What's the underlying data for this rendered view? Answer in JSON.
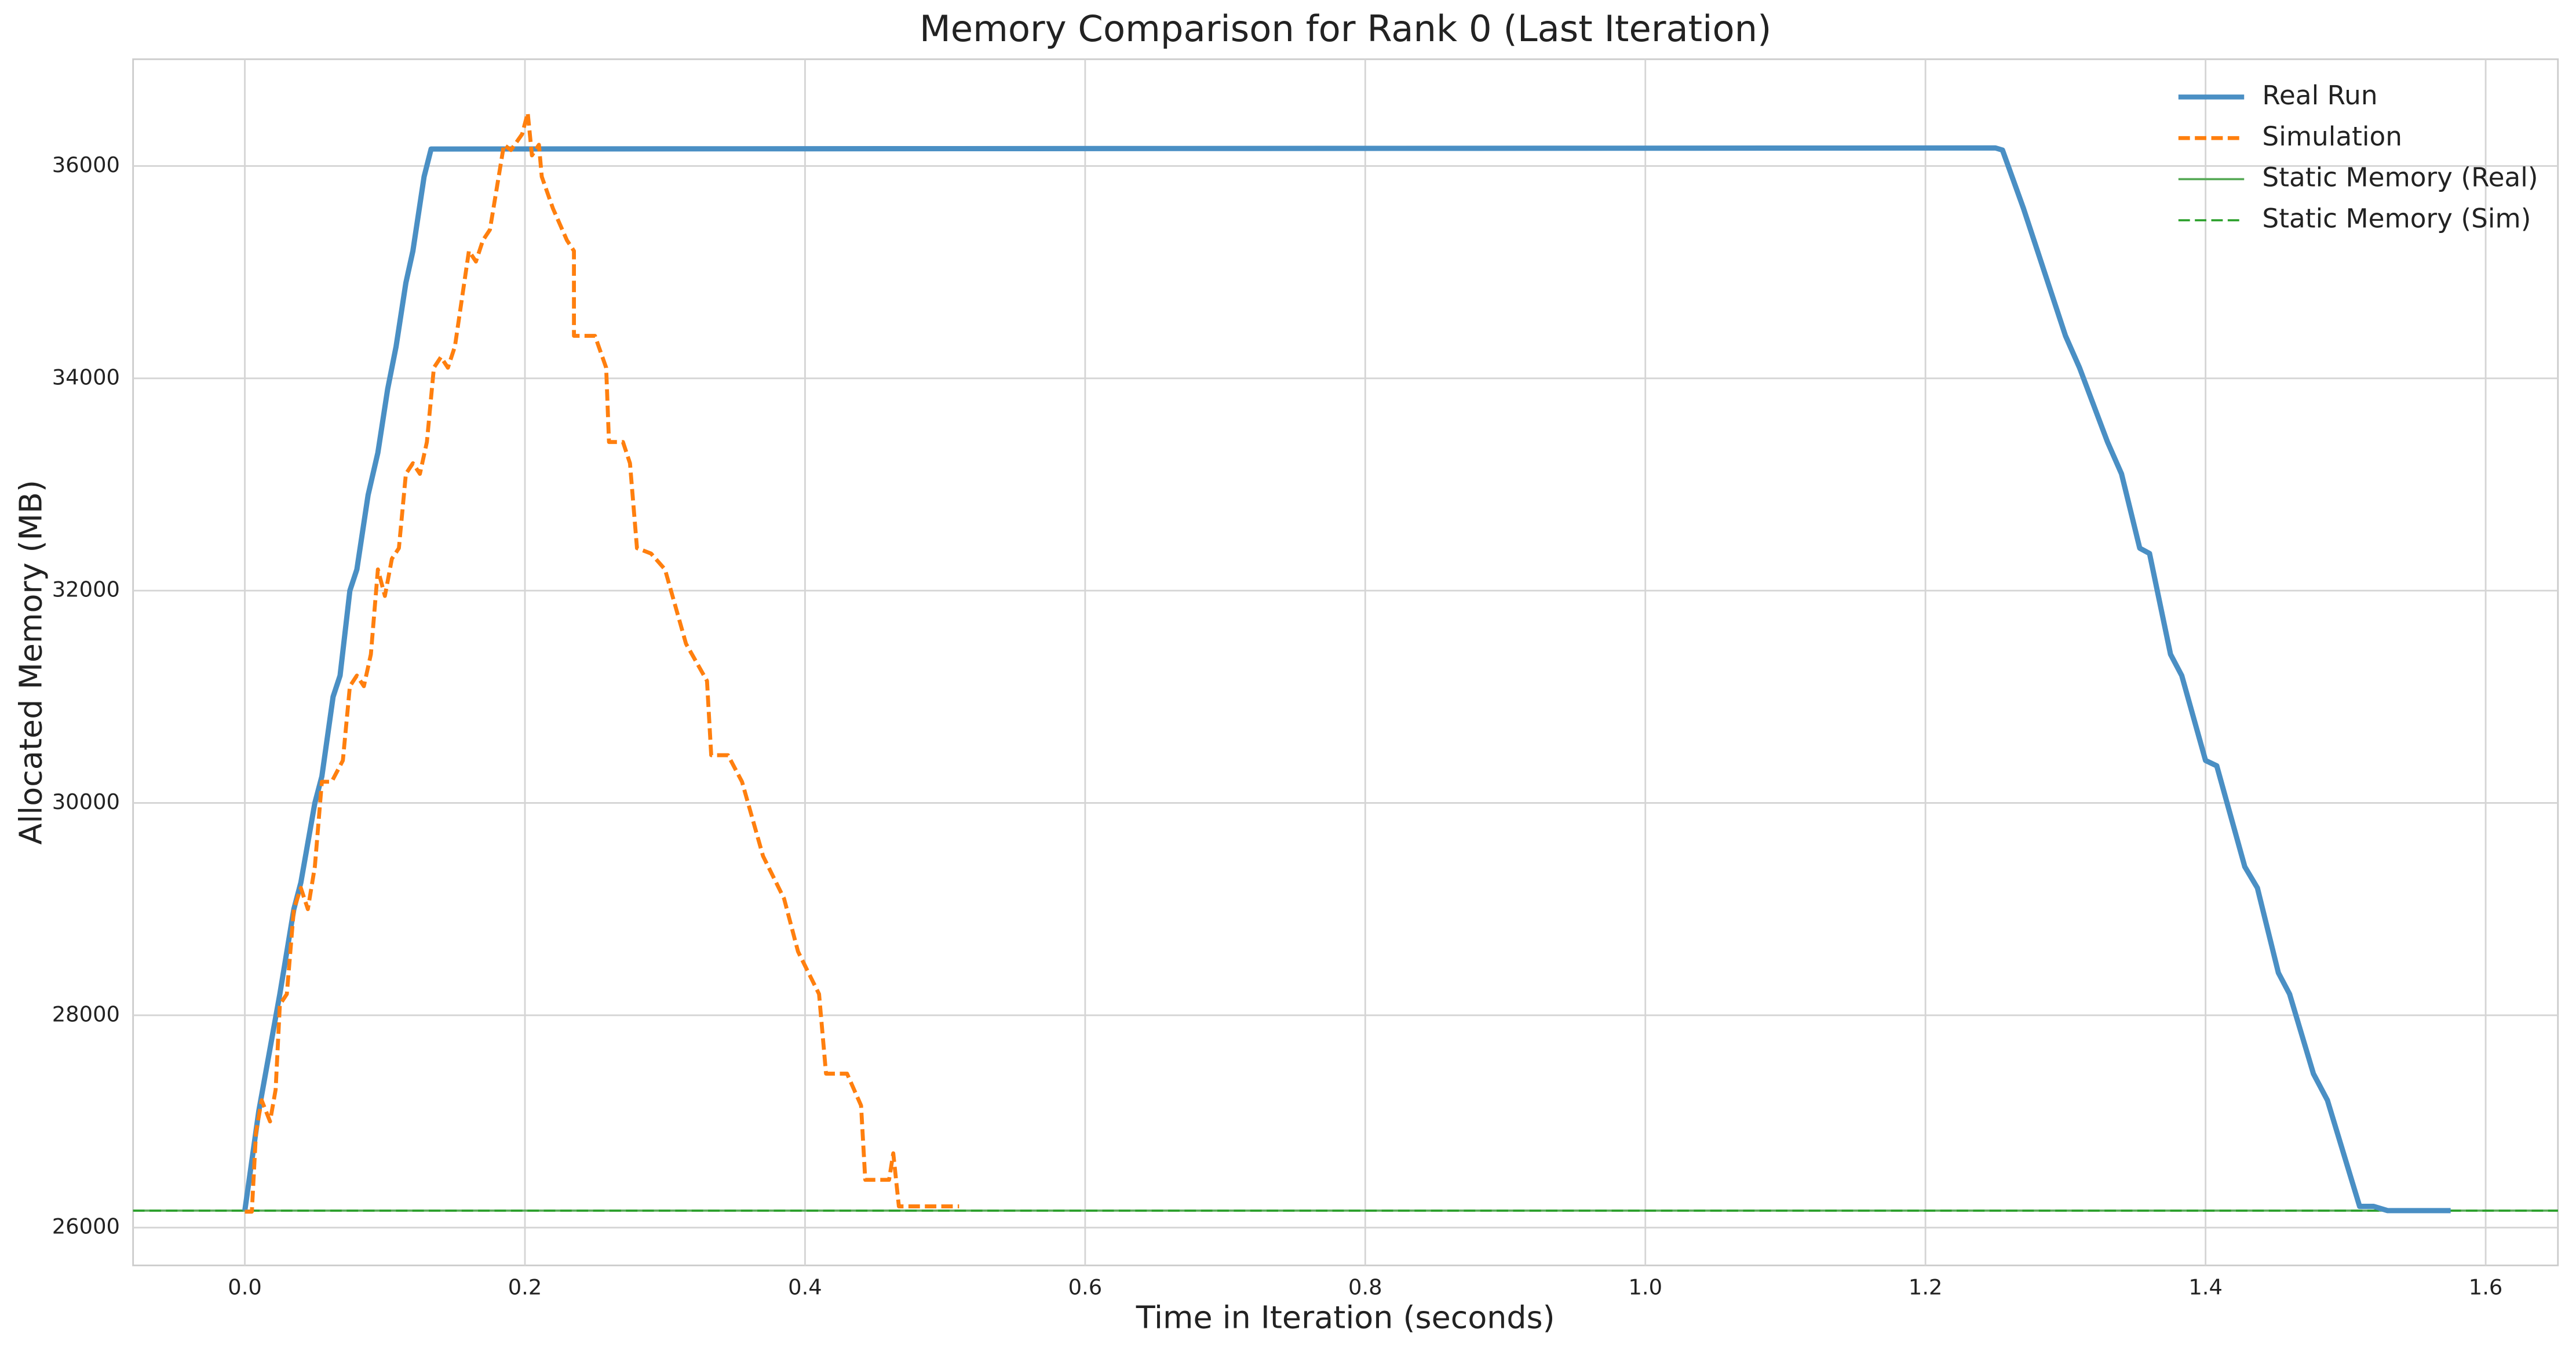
{
  "chart_data": {
    "type": "line",
    "title": "Memory Comparison for Rank 0 (Last Iteration)",
    "x_label": "Time in Iteration (seconds)",
    "y_label": "Allocated Memory (MB)",
    "xlim": [
      -0.0798,
      1.6516
    ],
    "ylim": [
      25644,
      37006
    ],
    "xticks": [
      {
        "value": 0,
        "label": "0.0"
      },
      0.2,
      0.4,
      0.6,
      0.8,
      {
        "value": 1,
        "label": "1.0"
      },
      1.2,
      1.4,
      1.6
    ],
    "yticks": [
      26000,
      28000,
      30000,
      32000,
      34000,
      36000
    ],
    "grid": true,
    "legend": "upper right",
    "series": [
      {
        "name": "Real Run",
        "color": "#4a8fc4",
        "style": "solid",
        "x": [
          0,
          0.01,
          0.025,
          0.035,
          0.04,
          0.05,
          0.055,
          0.063,
          0.068,
          0.075,
          0.08,
          0.088,
          0.095,
          0.102,
          0.108,
          0.115,
          0.12,
          0.128,
          0.133,
          1.25,
          1.255,
          1.27,
          1.28,
          1.3,
          1.31,
          1.33,
          1.34,
          1.353,
          1.36,
          1.375,
          1.383,
          1.4,
          1.408,
          1.428,
          1.437,
          1.452,
          1.46,
          1.477,
          1.487,
          1.51,
          1.52,
          1.53,
          1.575
        ],
        "values": [
          26160,
          27100,
          28200,
          29000,
          29250,
          30000,
          30250,
          31000,
          31200,
          32000,
          32200,
          32900,
          33300,
          33900,
          34300,
          34900,
          35200,
          35900,
          36160,
          36170,
          36150,
          35600,
          35200,
          34400,
          34100,
          33400,
          33100,
          32400,
          32350,
          31400,
          31200,
          30400,
          30350,
          29400,
          29200,
          28400,
          28200,
          27450,
          27200,
          26200,
          26200,
          26160,
          26160
        ]
      },
      {
        "name": "Simulation",
        "color": "#ff7f0e",
        "style": "dashed",
        "x": [
          0,
          0.005,
          0.008,
          0.012,
          0.018,
          0.022,
          0.025,
          0.03,
          0.035,
          0.04,
          0.045,
          0.05,
          0.055,
          0.062,
          0.07,
          0.075,
          0.08,
          0.085,
          0.09,
          0.095,
          0.1,
          0.105,
          0.11,
          0.115,
          0.12,
          0.125,
          0.13,
          0.135,
          0.14,
          0.145,
          0.15,
          0.16,
          0.165,
          0.17,
          0.175,
          0.185,
          0.19,
          0.198,
          0.202,
          0.205,
          0.21,
          0.212,
          0.22,
          0.23,
          0.235,
          0.235,
          0.25,
          0.258,
          0.26,
          0.27,
          0.275,
          0.28,
          0.29,
          0.3,
          0.315,
          0.33,
          0.333,
          0.345,
          0.355,
          0.37,
          0.385,
          0.395,
          0.41,
          0.415,
          0.43,
          0.44,
          0.443,
          0.46,
          0.463,
          0.467,
          0.51
        ],
        "values": [
          26150,
          26150,
          26900,
          27200,
          27000,
          27300,
          28100,
          28200,
          29000,
          29200,
          29000,
          29400,
          30200,
          30200,
          30400,
          31100,
          31200,
          31100,
          31400,
          32200,
          31950,
          32300,
          32400,
          33100,
          33200,
          33100,
          33400,
          34100,
          34200,
          34100,
          34300,
          35200,
          35100,
          35300,
          35400,
          36200,
          36150,
          36300,
          36500,
          36100,
          36200,
          35900,
          35600,
          35300,
          35200,
          34400,
          34400,
          34100,
          33400,
          33400,
          33200,
          32400,
          32350,
          32200,
          31500,
          31150,
          30450,
          30450,
          30200,
          29500,
          29100,
          28600,
          28200,
          27450,
          27450,
          27150,
          26450,
          26450,
          26700,
          26200,
          26200
        ]
      }
    ],
    "hlines": [
      {
        "name": "Static Memory (Real)",
        "color": "#5aab5a",
        "style": "solid",
        "value": 26160
      },
      {
        "name": "Static Memory (Sim)",
        "color": "#2ca02c",
        "style": "dashed",
        "value": 26160
      }
    ]
  }
}
